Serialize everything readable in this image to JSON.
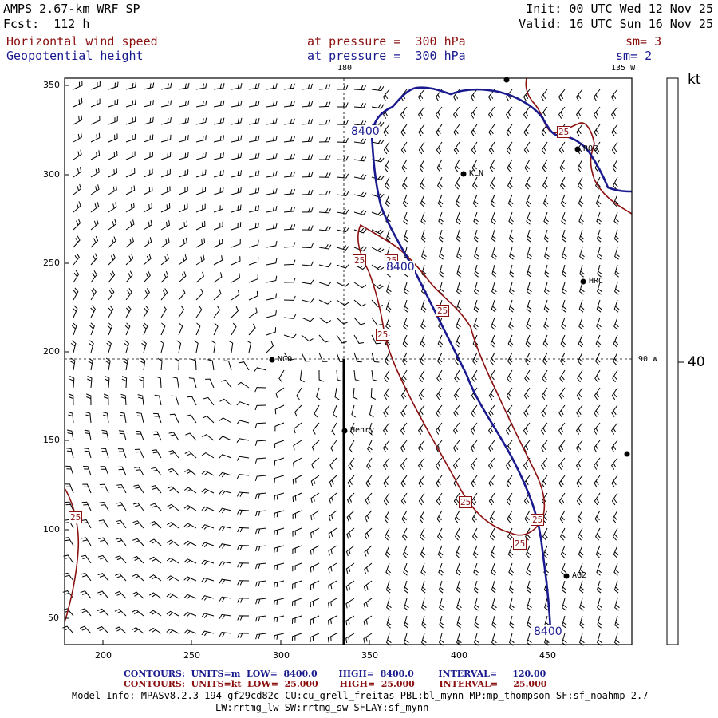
{
  "header": {
    "title": "AMPS 2.67-km WRF SP",
    "forecast": "Fcst:  112 h",
    "init": "Init: 00 UTC Wed 12 Nov 25",
    "valid": "Valid: 16 UTC Sun 16 Nov 25",
    "field1": "Horizontal wind speed",
    "field1_level": "at pressure =  300 hPa",
    "field1_sm": "sm= 3",
    "field2": "Geopotential height",
    "field2_level": "at pressure =  300 hPa",
    "field2_sm": "sm= 2"
  },
  "map": {
    "meridian_top": "180",
    "meridian_corner": "135 W",
    "meridian_right": "90 W",
    "x_ticks": [
      "200",
      "250",
      "300",
      "350",
      "400",
      "450"
    ],
    "y_ticks": [
      "350",
      "300",
      "250",
      "200",
      "150",
      "100",
      "50"
    ],
    "contour_label_height": "8400",
    "contour_label_speed": "25",
    "stations": [
      {
        "name": "KLN"
      },
      {
        "name": "ROG"
      },
      {
        "name": "HRC"
      },
      {
        "name": "NCO"
      },
      {
        "name": "Henry"
      },
      {
        "name": "AG2"
      }
    ],
    "colors": {
      "height": "#1a1a8f",
      "speed": "#8b1010",
      "barb": "#000000"
    }
  },
  "legend": {
    "unit": "kt",
    "value": "40"
  },
  "footer": {
    "line1": "CONTOURS:  UNITS=m  LOW=  8400.0       HIGH=  8400.0        INTERVAL=     120.00",
    "line2": "CONTOURS:  UNITS=kt  LOW=  25.000       HIGH=  25.000        INTERVAL=     25.000",
    "model_info": "Model Info: MPASv8.2.3-194-gf29cd82c CU:cu_grell_freitas PBL:bl_mynn MP:mp_thompson SF:sf_noahmp 2.7",
    "model_info2": "LW:rrtmg_lw SW:rrtmg_sw SFLAY:sf_mynn"
  }
}
